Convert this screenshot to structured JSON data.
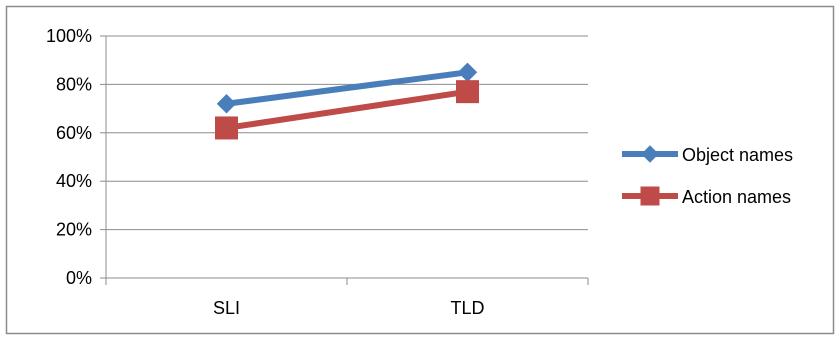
{
  "chart_data": {
    "type": "line",
    "categories": [
      "SLI",
      "TLD"
    ],
    "y_ticks": [
      "0%",
      "20%",
      "40%",
      "60%",
      "80%",
      "100%"
    ],
    "ylim": [
      0,
      100
    ],
    "grid": true,
    "legend_position": "right",
    "series": [
      {
        "name": "Object names",
        "values": [
          72,
          85
        ],
        "color": "#4A7EBB",
        "marker": "diamond"
      },
      {
        "name": "Action names",
        "values": [
          62,
          77
        ],
        "color": "#BE4B48",
        "marker": "square"
      }
    ]
  }
}
